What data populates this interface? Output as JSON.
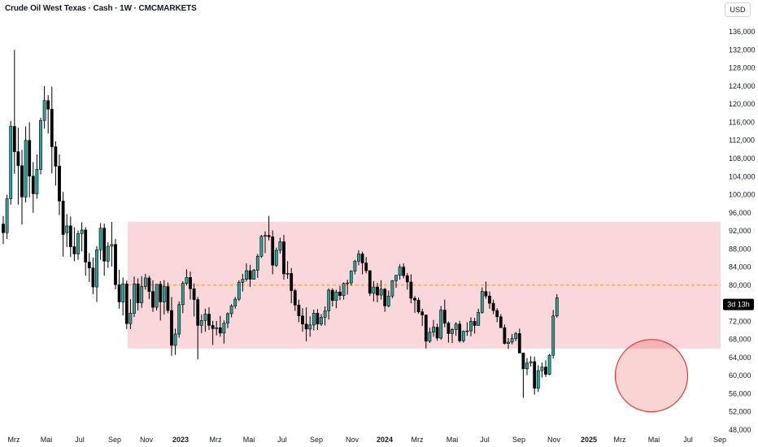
{
  "header": {
    "title": "Crude Oil West Texas · Cash · 1W · CMCMARKETS",
    "currency": "USD"
  },
  "price_badge": {
    "text": "3d 13h"
  },
  "colors": {
    "up": "#26a69a",
    "down": "#000000",
    "zone_fill": "#f7c6cb",
    "level_line": "#ff9800",
    "highlight": "#e53935"
  },
  "chart_data": {
    "type": "candlestick",
    "title": "Crude Oil West Texas · Cash · 1W · CMCMARKETS",
    "ylim": [
      48000,
      138000
    ],
    "y_ticks": [
      48000,
      52000,
      56000,
      60000,
      64000,
      68000,
      72000,
      76000,
      80000,
      84000,
      88000,
      92000,
      96000,
      100000,
      104000,
      108000,
      112000,
      116000,
      120000,
      124000,
      128000,
      132000,
      136000
    ],
    "x_ticks": [
      {
        "label": "Mrz",
        "major": false
      },
      {
        "label": "Mai",
        "major": false
      },
      {
        "label": "Jul",
        "major": false
      },
      {
        "label": "Sep",
        "major": false
      },
      {
        "label": "Nov",
        "major": false
      },
      {
        "label": "2023",
        "major": true
      },
      {
        "label": "Mrz",
        "major": false
      },
      {
        "label": "Mai",
        "major": false
      },
      {
        "label": "Jul",
        "major": false
      },
      {
        "label": "Sep",
        "major": false
      },
      {
        "label": "Nov",
        "major": false
      },
      {
        "label": "2024",
        "major": true
      },
      {
        "label": "Mrz",
        "major": false
      },
      {
        "label": "Mai",
        "major": false
      },
      {
        "label": "Jul",
        "major": false
      },
      {
        "label": "Sep",
        "major": false
      },
      {
        "label": "Nov",
        "major": false
      },
      {
        "label": "2025",
        "major": true
      },
      {
        "label": "Mrz",
        "major": false
      },
      {
        "label": "Mai",
        "major": false
      },
      {
        "label": "Jul",
        "major": false
      },
      {
        "label": "Sep",
        "major": false
      }
    ],
    "zone": {
      "low": 66000,
      "high": 94000
    },
    "level_line": 80000,
    "last_price": 76800,
    "highlight_circle": {
      "center_price": 60000,
      "radius_price": 8000
    },
    "candles": [
      [
        93.5,
        95.3,
        89.1,
        91.6
      ],
      [
        91.6,
        100.0,
        90.2,
        99.1
      ],
      [
        99.1,
        116.3,
        97.8,
        115.1
      ],
      [
        115.1,
        132.0,
        104.6,
        109.5
      ],
      [
        109.5,
        114.8,
        97.8,
        106.4
      ],
      [
        106.4,
        109.9,
        93.4,
        99.5
      ],
      [
        99.5,
        115.1,
        98.3,
        112.0
      ],
      [
        112.0,
        116.0,
        99.4,
        104.1
      ],
      [
        104.1,
        107.2,
        96.0,
        100.2
      ],
      [
        100.2,
        108.9,
        99.1,
        105.6
      ],
      [
        105.6,
        117.0,
        104.5,
        116.4
      ],
      [
        116.4,
        124.0,
        114.6,
        120.8
      ],
      [
        120.8,
        122.0,
        113.5,
        118.9
      ],
      [
        118.9,
        123.9,
        104.7,
        110.6
      ],
      [
        110.6,
        111.8,
        102.0,
        106.3
      ],
      [
        106.3,
        108.9,
        95.5,
        98.6
      ],
      [
        98.6,
        100.6,
        86.3,
        91.2
      ],
      [
        91.6,
        95.7,
        88.4,
        93.1
      ],
      [
        93.1,
        95.2,
        86.2,
        88.5
      ],
      [
        88.5,
        92.8,
        85.3,
        86.9
      ],
      [
        86.9,
        92.1,
        85.6,
        91.4
      ],
      [
        91.4,
        93.9,
        87.5,
        92.2
      ],
      [
        92.2,
        92.8,
        82.1,
        85.1
      ],
      [
        85.1,
        87.1,
        80.7,
        83.8
      ],
      [
        83.8,
        86.1,
        78.0,
        79.6
      ],
      [
        79.6,
        88.6,
        76.3,
        87.8
      ],
      [
        87.8,
        93.7,
        85.6,
        92.6
      ],
      [
        92.6,
        93.6,
        82.1,
        85.3
      ],
      [
        85.3,
        89.5,
        83.8,
        88.6
      ],
      [
        88.6,
        94.0,
        84.1,
        89.0
      ],
      [
        89.0,
        90.2,
        79.1,
        80.1
      ],
      [
        80.1,
        83.4,
        74.8,
        76.3
      ],
      [
        76.3,
        81.7,
        73.3,
        80.3
      ],
      [
        80.3,
        81.0,
        70.3,
        71.5
      ],
      [
        71.5,
        76.9,
        70.3,
        73.8
      ],
      [
        73.8,
        81.9,
        73.0,
        80.3
      ],
      [
        80.3,
        81.5,
        74.4,
        76.1
      ],
      [
        76.1,
        82.0,
        75.0,
        79.7
      ],
      [
        79.7,
        82.5,
        79.0,
        81.6
      ],
      [
        81.6,
        82.1,
        76.9,
        78.6
      ],
      [
        78.6,
        81.1,
        74.1,
        75.1
      ],
      [
        75.1,
        80.2,
        74.4,
        80.2
      ],
      [
        80.2,
        80.9,
        72.2,
        76.3
      ],
      [
        76.3,
        81.1,
        73.5,
        79.7
      ],
      [
        79.7,
        80.6,
        73.8,
        74.4
      ],
      [
        74.4,
        77.4,
        64.4,
        66.7
      ],
      [
        66.7,
        70.4,
        64.6,
        69.2
      ],
      [
        69.2,
        76.4,
        68.4,
        75.7
      ],
      [
        75.7,
        80.9,
        73.8,
        80.4
      ],
      [
        80.4,
        83.5,
        80.0,
        81.7
      ],
      [
        81.7,
        83.0,
        76.8,
        79.2
      ],
      [
        79.2,
        80.4,
        73.1,
        76.8
      ],
      [
        76.8,
        77.4,
        63.6,
        71.1
      ],
      [
        71.1,
        73.5,
        69.4,
        72.2
      ],
      [
        72.2,
        74.8,
        69.7,
        73.6
      ],
      [
        73.6,
        75.1,
        70.1,
        71.1
      ],
      [
        71.1,
        72.1,
        66.8,
        70.4
      ],
      [
        70.4,
        72.1,
        68.9,
        70.6
      ],
      [
        70.6,
        73.2,
        68.6,
        69.4
      ],
      [
        69.4,
        72.2,
        67.1,
        71.6
      ],
      [
        71.6,
        74.0,
        70.5,
        73.7
      ],
      [
        73.7,
        75.8,
        72.9,
        75.4
      ],
      [
        75.4,
        77.4,
        74.8,
        76.9
      ],
      [
        76.9,
        81.1,
        76.5,
        80.6
      ],
      [
        80.6,
        82.5,
        78.6,
        81.3
      ],
      [
        81.3,
        84.8,
        80.8,
        83.2
      ],
      [
        83.2,
        84.5,
        79.6,
        81.3
      ],
      [
        81.3,
        83.6,
        81.3,
        83.3
      ],
      [
        83.3,
        86.9,
        81.6,
        86.4
      ],
      [
        86.4,
        91.1,
        86.0,
        90.8
      ],
      [
        90.8,
        91.9,
        87.1,
        91.0
      ],
      [
        91.0,
        95.3,
        89.9,
        90.7
      ],
      [
        90.7,
        92.1,
        82.4,
        84.4
      ],
      [
        84.4,
        88.3,
        84.0,
        87.7
      ],
      [
        87.7,
        90.5,
        87.0,
        89.6
      ],
      [
        89.6,
        91.1,
        81.2,
        82.5
      ],
      [
        82.5,
        85.3,
        81.4,
        82.6
      ],
      [
        82.6,
        83.8,
        76.0,
        78.8
      ],
      [
        78.8,
        79.2,
        74.3,
        75.6
      ],
      [
        75.6,
        76.8,
        71.8,
        73.2
      ],
      [
        73.2,
        74.9,
        69.7,
        71.4
      ],
      [
        71.4,
        75.1,
        67.6,
        70.3
      ],
      [
        70.3,
        73.1,
        68.6,
        71.2
      ],
      [
        71.2,
        74.6,
        70.0,
        73.8
      ],
      [
        73.8,
        74.7,
        70.1,
        71.4
      ],
      [
        71.4,
        73.6,
        71.0,
        72.9
      ],
      [
        72.9,
        75.3,
        71.1,
        74.3
      ],
      [
        74.3,
        79.3,
        72.4,
        78.9
      ],
      [
        78.9,
        79.3,
        75.3,
        76.6
      ],
      [
        76.6,
        79.0,
        74.9,
        78.5
      ],
      [
        78.5,
        79.8,
        76.7,
        77.7
      ],
      [
        77.7,
        80.6,
        76.8,
        80.4
      ],
      [
        80.4,
        81.2,
        77.9,
        80.5
      ],
      [
        80.5,
        83.3,
        79.9,
        83.1
      ],
      [
        83.1,
        85.6,
        82.4,
        85.3
      ],
      [
        85.3,
        87.7,
        84.4,
        86.9
      ],
      [
        86.9,
        87.4,
        82.4,
        84.9
      ],
      [
        84.9,
        86.2,
        82.6,
        83.2
      ],
      [
        83.2,
        83.3,
        77.6,
        78.2
      ],
      [
        78.2,
        80.9,
        76.4,
        79.6
      ],
      [
        79.6,
        80.5,
        76.2,
        77.8
      ],
      [
        77.8,
        81.1,
        76.8,
        79.1
      ],
      [
        79.1,
        79.4,
        74.1,
        75.4
      ],
      [
        75.4,
        78.8,
        75.1,
        77.6
      ],
      [
        77.6,
        81.1,
        77.1,
        81.0
      ],
      [
        81.0,
        82.2,
        79.4,
        82.2
      ],
      [
        82.2,
        84.6,
        81.2,
        84.0
      ],
      [
        84.0,
        84.8,
        81.5,
        82.1
      ],
      [
        82.1,
        82.7,
        79.0,
        80.7
      ],
      [
        80.7,
        82.4,
        76.0,
        77.1
      ],
      [
        77.1,
        77.6,
        73.9,
        76.7
      ],
      [
        76.7,
        77.3,
        73.7,
        74.1
      ],
      [
        74.1,
        74.8,
        71.0,
        73.4
      ],
      [
        73.4,
        73.5,
        66.0,
        67.6
      ],
      [
        67.6,
        70.6,
        67.2,
        69.6
      ],
      [
        69.6,
        72.3,
        68.6,
        70.7
      ],
      [
        70.7,
        71.5,
        67.7,
        68.3
      ],
      [
        68.3,
        75.4,
        67.9,
        74.5
      ],
      [
        74.5,
        76.8,
        70.7,
        71.6
      ],
      [
        71.6,
        72.0,
        67.3,
        69.3
      ],
      [
        69.3,
        70.5,
        67.2,
        70.2
      ],
      [
        70.2,
        71.8,
        68.8,
        71.4
      ],
      [
        71.4,
        72.1,
        67.3,
        67.7
      ],
      [
        67.7,
        70.0,
        67.3,
        69.8
      ],
      [
        69.8,
        71.8,
        68.8,
        69.9
      ],
      [
        69.9,
        72.9,
        68.7,
        72.0
      ],
      [
        72.0,
        72.8,
        69.3,
        71.1
      ],
      [
        71.1,
        74.8,
        71.0,
        74.0
      ],
      [
        74.0,
        79.5,
        73.7,
        78.6
      ],
      [
        78.6,
        80.8,
        77.0,
        77.6
      ],
      [
        77.6,
        78.6,
        74.8,
        76.0
      ],
      [
        76.0,
        76.8,
        73.6,
        74.4
      ],
      [
        74.4,
        74.9,
        71.8,
        73.0
      ],
      [
        73.0,
        73.6,
        70.8,
        70.6
      ],
      [
        70.6,
        71.3,
        66.9,
        67.1
      ],
      [
        67.1,
        68.3,
        65.9,
        67.4
      ],
      [
        67.4,
        69.2,
        66.9,
        68.2
      ],
      [
        68.2,
        69.7,
        67.6,
        69.3
      ],
      [
        69.3,
        70.4,
        65.0,
        65.0
      ],
      [
        65.0,
        65.1,
        55.1,
        61.5
      ],
      [
        61.5,
        63.9,
        60.1,
        62.8
      ],
      [
        62.8,
        64.3,
        62.0,
        63.1
      ],
      [
        63.1,
        64.2,
        55.8,
        57.2
      ],
      [
        57.2,
        62.3,
        56.4,
        61.1
      ],
      [
        61.1,
        62.9,
        59.6,
        61.9
      ],
      [
        61.9,
        63.4,
        59.7,
        60.3
      ],
      [
        60.3,
        64.8,
        60.1,
        64.5
      ],
      [
        64.5,
        74.5,
        63.8,
        73.2
      ],
      [
        73.2,
        78.0,
        72.8,
        77.2
      ]
    ]
  }
}
